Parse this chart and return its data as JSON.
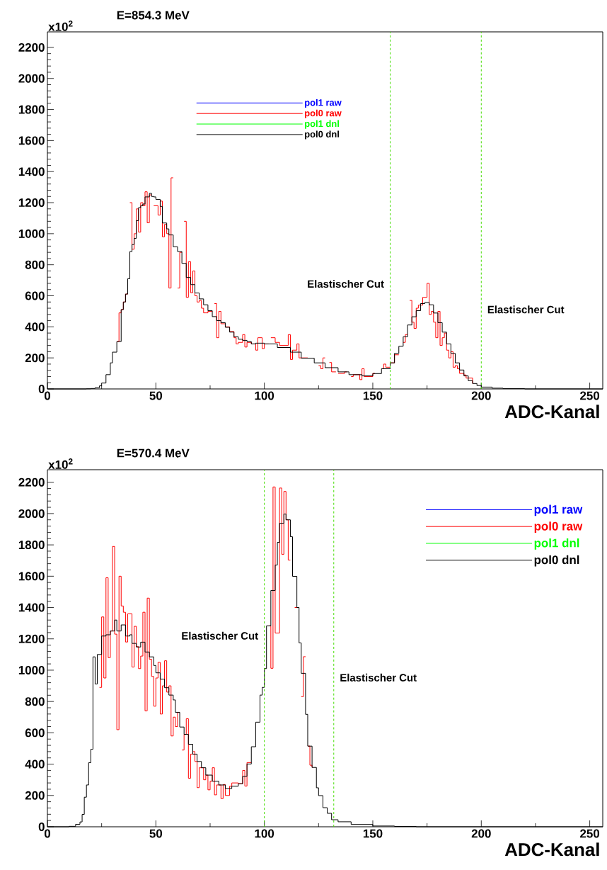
{
  "chart_data": [
    {
      "type": "step",
      "title": "E=854.3 MeV",
      "xlabel": "ADC-Kanal",
      "legend": "top",
      "line_style": "solid",
      "xlim": [
        0,
        256
      ],
      "ylim": [
        0,
        2300
      ],
      "xticks": [
        0,
        50,
        100,
        150,
        200,
        250
      ],
      "yticks": [
        0,
        200,
        400,
        600,
        800,
        1000,
        1200,
        1400,
        1600,
        1800,
        2000,
        2200
      ],
      "annotations": [
        "x10$^{2}$",
        {
          "text": "Elastischer Cut",
          "x": 158,
          "y": 677
        },
        {
          "text": "Elastischer Cut",
          "x": 200,
          "y": 512
        }
      ],
      "ref_lines": [
        {
          "axis": "x",
          "value": 158,
          "color": "#44dd00",
          "line_style": "dashed"
        },
        {
          "axis": "x",
          "value": 200,
          "color": "#44dd00",
          "line_style": "dashed"
        }
      ],
      "series": [
        {
          "name": "pol1 raw",
          "color": "#0000ff",
          "values": [
            null
          ]
        },
        {
          "name": "pol0 raw",
          "color": "#ff0000",
          "x": [
            32,
            33,
            34,
            35,
            36,
            37,
            38,
            39,
            40,
            41,
            42,
            43,
            44,
            45,
            46,
            47,
            48,
            49,
            50,
            51,
            52,
            53,
            54,
            55,
            56,
            57,
            58,
            59,
            60,
            61,
            62,
            63,
            64,
            65,
            66,
            67,
            68,
            69,
            70,
            71,
            72,
            74,
            76,
            77,
            78,
            79,
            80,
            82,
            84,
            86,
            87,
            88,
            90,
            91,
            92,
            94,
            96,
            97,
            99,
            100,
            102,
            103,
            105,
            107,
            111,
            112,
            113,
            115,
            116,
            117,
            120,
            121,
            122,
            125,
            126,
            127,
            128,
            130,
            131,
            133,
            134,
            137,
            138,
            140,
            141,
            144,
            145,
            146,
            147,
            150,
            151,
            153,
            154,
            155,
            156,
            158,
            160,
            162,
            163,
            164,
            165,
            166,
            167,
            168,
            169,
            170,
            171,
            173,
            175,
            176,
            177,
            178,
            179,
            180,
            181,
            182,
            183,
            184,
            185,
            186,
            187,
            188,
            189,
            190,
            192,
            193,
            196
          ],
          "values": [
            305,
            490,
            511,
            560,
            611,
            null,
            1200,
            900,
            1000,
            1160,
            1010,
            1200,
            1180,
            1270,
            1070,
            1250,
            null,
            1180,
            1180,
            1120,
            1210,
            980,
            1060,
            1000,
            650,
            1360,
            null,
            null,
            650,
            880,
            null,
            1080,
            590,
            820,
            620,
            760,
            600,
            560,
            570,
            520,
            490,
            500,
            null,
            550,
            330,
            500,
            420,
            400,
            370,
            330,
            290,
            300,
            350,
            270,
            300,
            290,
            250,
            330,
            260,
            290,
            null,
            330,
            300,
            280,
            350,
            190,
            250,
            290,
            200,
            200,
            null,
            null,
            null,
            150,
            130,
            200,
            null,
            170,
            110,
            null,
            100,
            110,
            null,
            80,
            92,
            60,
            130,
            80,
            80,
            100,
            null,
            null,
            130,
            160,
            140,
            168,
            220,
            null,
            null,
            300,
            350,
            null,
            570,
            430,
            390,
            520,
            540,
            590,
            680,
            480,
            500,
            430,
            330,
            500,
            280,
            330,
            360,
            250,
            200,
            240,
            140,
            150,
            130,
            100,
            90,
            70,
            35
          ]
        },
        {
          "name": "pol1 dnl",
          "color": "#00ff00",
          "values": [
            null
          ]
        },
        {
          "name": "pol0 dnl",
          "color": "#000000",
          "x": [
            0,
            18,
            20,
            22,
            24,
            25,
            27,
            29,
            30,
            32,
            34,
            35,
            36,
            37,
            38,
            39,
            40,
            41,
            42,
            43,
            44,
            45,
            47,
            48,
            49,
            50,
            52,
            53,
            55,
            56,
            58,
            60,
            62,
            64,
            66,
            68,
            70,
            72,
            74,
            76,
            78,
            80,
            82,
            84,
            86,
            88,
            90,
            92,
            94,
            96,
            100,
            106,
            112,
            117,
            123,
            128,
            134,
            139,
            145,
            150,
            154,
            158,
            160,
            162,
            164,
            166,
            168,
            170,
            172,
            174,
            176,
            178,
            180,
            182,
            184,
            186,
            188,
            190,
            192,
            194,
            196,
            198,
            200,
            205,
            210,
            220,
            256
          ],
          "values": [
            0,
            1,
            3,
            8,
            20,
            38,
            92,
            168,
            237,
            305,
            511,
            560,
            611,
            710,
            885,
            930,
            970,
            1084,
            1168,
            1180,
            1191,
            1237,
            1260,
            1240,
            1237,
            1221,
            1176,
            1069,
            1031,
            992,
            916,
            885,
            809,
            718,
            672,
            618,
            580,
            542,
            504,
            466,
            440,
            427,
            397,
            366,
            336,
            320,
            313,
            305,
            290,
            295,
            290,
            267,
            237,
            198,
            168,
            137,
            110,
            92,
            84,
            99,
            130,
            168,
            229,
            275,
            336,
            412,
            465,
            504,
            550,
            557,
            542,
            489,
            427,
            366,
            290,
            229,
            168,
            122,
            84,
            53,
            35,
            22,
            12,
            5,
            2,
            0,
            0
          ]
        }
      ]
    },
    {
      "type": "step",
      "title": "E=570.4 MeV",
      "xlabel": "ADC-Kanal",
      "legend": "top right",
      "line_style": "solid",
      "xlim": [
        0,
        256
      ],
      "ylim": [
        0,
        2280
      ],
      "xticks": [
        0,
        50,
        100,
        150,
        200,
        250
      ],
      "yticks": [
        0,
        200,
        400,
        600,
        800,
        1000,
        1200,
        1400,
        1600,
        1800,
        2000,
        2200
      ],
      "annotations": [
        "x10$^{2}$",
        {
          "text": "Elastischer Cut",
          "x": 100,
          "y": 1220
        },
        {
          "text": "Elastischer Cut",
          "x": 132,
          "y": 953
        }
      ],
      "ref_lines": [
        {
          "axis": "x",
          "value": 100,
          "color": "#44dd00",
          "line_style": "dashed"
        },
        {
          "axis": "x",
          "value": 132,
          "color": "#44dd00",
          "line_style": "dashed"
        }
      ],
      "series": [
        {
          "name": "pol1 raw",
          "color": "#0000ff",
          "values": [
            null
          ]
        },
        {
          "name": "pol0 raw",
          "color": "#ff0000",
          "x": [
            24,
            25,
            26,
            27,
            28,
            29,
            30,
            31,
            32,
            33,
            34,
            35,
            36,
            37,
            39,
            40,
            41,
            42,
            43,
            44,
            45,
            46,
            47,
            48,
            49,
            50,
            51,
            52,
            53,
            54,
            55,
            56,
            57,
            58,
            59,
            60,
            61,
            62,
            63,
            64,
            65,
            66,
            67,
            68,
            69,
            70,
            72,
            73,
            74,
            75,
            76,
            77,
            78,
            80,
            81,
            82,
            84,
            85,
            88,
            90,
            91,
            92,
            94,
            96,
            98,
            99,
            100,
            102,
            103,
            104,
            105,
            107,
            108,
            109,
            110,
            111,
            112,
            113,
            114,
            116,
            117,
            118,
            119,
            120,
            121,
            122
          ],
          "values": [
            890,
            1340,
            950,
            1590,
            1080,
            1250,
            1790,
            1230,
            620,
            1600,
            1410,
            1370,
            1180,
            1360,
            1020,
            1280,
            1150,
            1010,
            1090,
            1370,
            740,
            1460,
            1070,
            960,
            770,
            950,
            1050,
            720,
            900,
            1060,
            860,
            900,
            580,
            700,
            640,
            730,
            null,
            490,
            590,
            690,
            310,
            464,
            480,
            417,
            250,
            377,
            300,
            330,
            236,
            291,
            377,
            204,
            267,
            180,
            270,
            200,
            259,
            280,
            275,
            360,
            260,
            410,
            null,
            null,
            null,
            null,
            null,
            1283,
            1012,
            2170,
            1237,
            2163,
            1740,
            2141,
            1960,
            1703,
            null,
            null,
            1400,
            null,
            831,
            1086,
            null,
            515,
            393,
            379
          ]
        },
        {
          "name": "pol1 dnl",
          "color": "#00ff00",
          "values": [
            null
          ]
        },
        {
          "name": "pol0 dnl",
          "color": "#000000",
          "x": [
            0,
            10,
            13,
            15,
            16,
            17,
            18,
            19,
            20,
            21,
            22,
            23,
            25,
            27,
            29,
            31,
            32,
            34,
            36,
            38,
            39,
            41,
            43,
            45,
            47,
            49,
            50,
            52,
            54,
            56,
            58,
            59,
            61,
            63,
            65,
            67,
            69,
            71,
            73,
            76,
            79,
            82,
            85,
            88,
            90,
            92,
            94,
            96,
            98,
            99,
            100,
            101,
            103,
            105,
            106,
            107,
            109,
            110,
            112,
            113,
            115,
            116,
            117,
            119,
            120,
            122,
            124,
            125,
            127,
            129,
            131,
            134,
            140,
            150,
            160,
            170,
            256
          ],
          "values": [
            0,
            3,
            16,
            31,
            79,
            189,
            267,
            409,
            495,
            1085,
            912,
            1100,
            1218,
            1226,
            1250,
            1320,
            1250,
            1289,
            1218,
            1226,
            1171,
            1148,
            1179,
            1116,
            1085,
            1030,
            983,
            943,
            888,
            841,
            810,
            731,
            637,
            590,
            527,
            464,
            417,
            377,
            330,
            291,
            267,
            244,
            259,
            275,
            322,
            401,
            511,
            668,
            841,
            890,
            1010,
            1283,
            1509,
            1671,
            1816,
            1938,
            1997,
            1960,
            1852,
            1599,
            1400,
            1174,
            980,
            718,
            515,
            379,
            249,
            199,
            122,
            86,
            45,
            32,
            15,
            5,
            2,
            0,
            0
          ]
        }
      ]
    }
  ]
}
